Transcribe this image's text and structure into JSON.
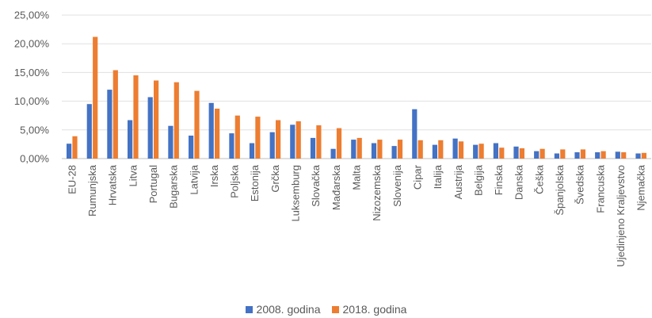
{
  "chart_data": {
    "type": "bar",
    "categories": [
      "EU-28",
      "Rumunjska",
      "Hrvatska",
      "Litva",
      "Portugal",
      "Bugarska",
      "Latvija",
      "Irska",
      "Poljska",
      "Estonija",
      "Grčka",
      "Luksemburg",
      "Slovačka",
      "Mađarska",
      "Malta",
      "Nizozemska",
      "Slovenija",
      "Cipar",
      "Italija",
      "Austrija",
      "Belgija",
      "Finska",
      "Danska",
      "Češka",
      "Španjolska",
      "Švedska",
      "Francuska",
      "Ujedinjeno Kraljevstvo",
      "Njemačka"
    ],
    "series": [
      {
        "name": "2008. godina",
        "color": "#4472c4",
        "values": [
          2.6,
          9.5,
          12.0,
          6.7,
          10.7,
          5.7,
          4.0,
          9.7,
          4.4,
          2.7,
          4.6,
          5.9,
          3.6,
          1.7,
          3.3,
          2.7,
          2.2,
          8.6,
          2.4,
          3.5,
          2.4,
          2.7,
          2.1,
          1.3,
          0.9,
          1.1,
          1.1,
          1.2,
          0.9
        ]
      },
      {
        "name": "2018. godina",
        "color": "#ed7d31",
        "values": [
          3.9,
          21.2,
          15.4,
          14.5,
          13.6,
          13.3,
          11.8,
          8.7,
          7.5,
          7.3,
          6.7,
          6.5,
          5.8,
          5.3,
          3.6,
          3.3,
          3.3,
          3.2,
          3.2,
          3.0,
          2.6,
          1.9,
          1.8,
          1.7,
          1.6,
          1.6,
          1.3,
          1.1,
          1.0
        ]
      }
    ],
    "yticks": [
      "0,00%",
      "5,00%",
      "10,00%",
      "15,00%",
      "20,00%",
      "25,00%"
    ],
    "ylim": [
      0,
      25
    ],
    "grid": true,
    "legend_position": "bottom"
  }
}
